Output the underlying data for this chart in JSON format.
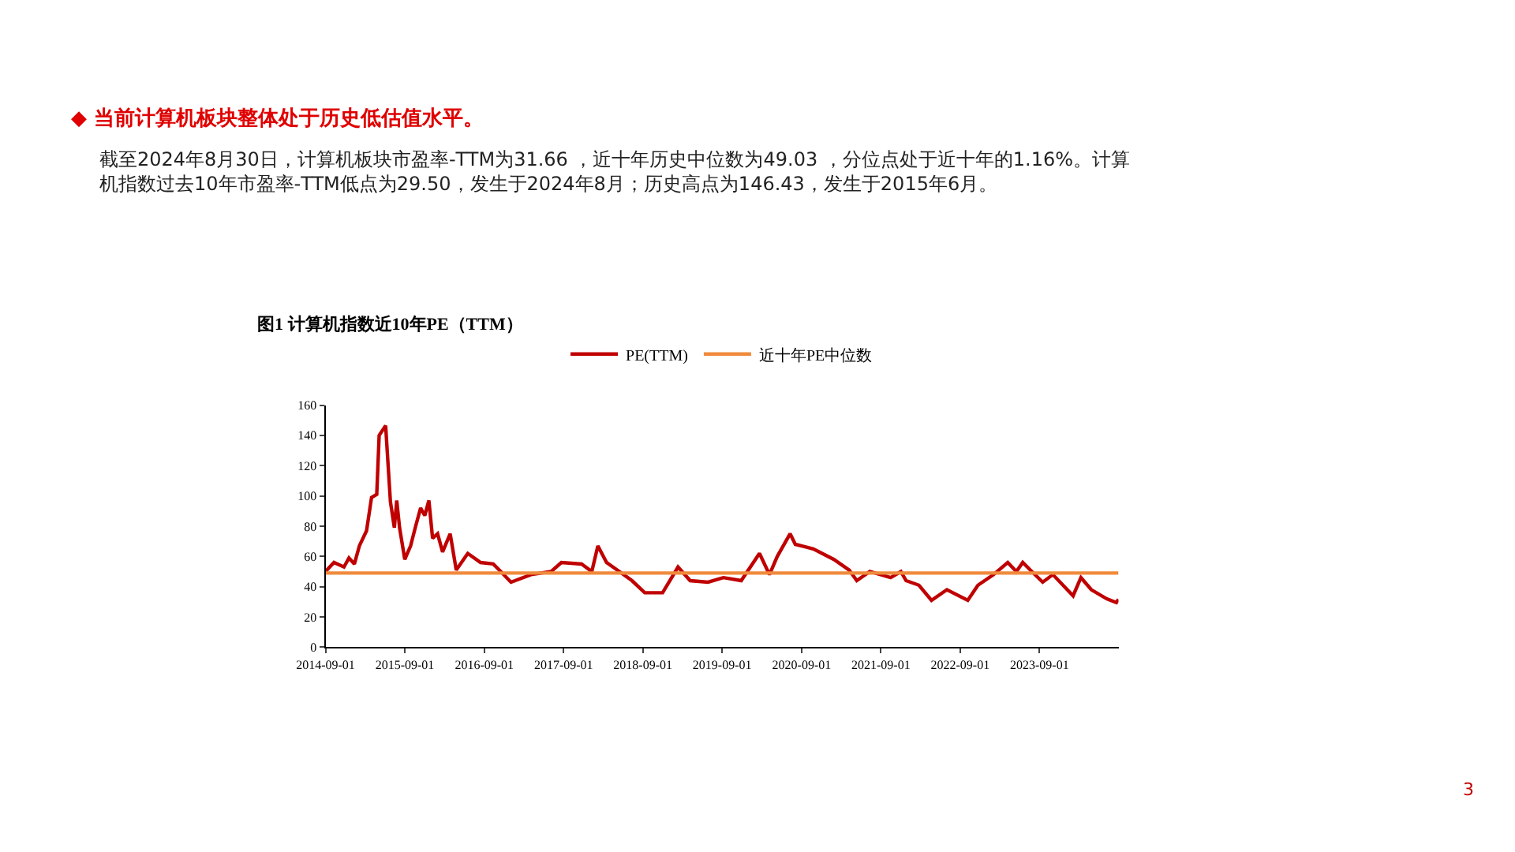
{
  "chart_data": {
    "type": "line",
    "title": "图1 计算机指数近10年PE（TTM）",
    "annotations": [
      "◆ 当前计算机板块整体处于历史低估值水平。",
      "截至2024年8月30日，计算机板块市盈率-TTM为31.66 ，近十年历史中位数为49.03 ，分位点处于近十年的1.16%。计算机指数过去10年市盈率-TTM低点为29.50，发生于2024年8月；历史高点为146.43，发生于2015年6月。",
      "3"
    ],
    "series": [
      {
        "name": "PE(TTM)",
        "color": "#c00000",
        "x": [
          "2014-09-01",
          "2014-10-10",
          "2014-11-25",
          "2014-12-18",
          "2015-01-12",
          "2015-02-04",
          "2015-03-09",
          "2015-04-01",
          "2015-04-25",
          "2015-05-06",
          "2015-06-05",
          "2015-06-12",
          "2015-06-27",
          "2015-07-15",
          "2015-07-26",
          "2015-08-08",
          "2015-09-01",
          "2015-09-28",
          "2015-10-21",
          "2015-11-13",
          "2015-12-02",
          "2015-12-21",
          "2016-01-07",
          "2016-01-30",
          "2016-02-22",
          "2016-03-28",
          "2016-04-25",
          "2016-06-17",
          "2016-08-15",
          "2016-10-12",
          "2016-11-16",
          "2017-01-02",
          "2017-04-04",
          "2017-07-06",
          "2017-08-22",
          "2017-11-23",
          "2018-01-09",
          "2018-02-06",
          "2018-03-18",
          "2018-05-16",
          "2018-07-13",
          "2018-09-10",
          "2018-12-01",
          "2019-02-10",
          "2019-04-07",
          "2019-06-28",
          "2019-09-07",
          "2019-11-28",
          "2020-02-20",
          "2020-04-06",
          "2020-05-12",
          "2020-07-10",
          "2020-08-03",
          "2020-10-25",
          "2021-01-28",
          "2021-04-08",
          "2021-05-13",
          "2021-07-12",
          "2021-10-16",
          "2021-12-02",
          "2021-12-26",
          "2022-02-23",
          "2022-04-22",
          "2022-07-02",
          "2022-10-06",
          "2022-11-22",
          "2023-02-02",
          "2023-04-08",
          "2023-05-18",
          "2023-06-16",
          "2023-07-28",
          "2023-09-16",
          "2023-11-02",
          "2024-02-03",
          "2024-03-10",
          "2024-04-27",
          "2024-07-07",
          "2024-08-20",
          "2024-08-30"
        ],
        "values": [
          50,
          56,
          53,
          59,
          55,
          67,
          77,
          99,
          101,
          140,
          146.43,
          130,
          96,
          79,
          97,
          79,
          58,
          67,
          80,
          92,
          87,
          97,
          72,
          75,
          63,
          75,
          51,
          62,
          56,
          55,
          50,
          43,
          48,
          50,
          56,
          55,
          50,
          67,
          56,
          50,
          44,
          36,
          36,
          53,
          44,
          43,
          46,
          44,
          62,
          48,
          60,
          75,
          68,
          65,
          58,
          51,
          44,
          50,
          46,
          50,
          44,
          41,
          31,
          38,
          31,
          41,
          48,
          56,
          50,
          56,
          50,
          43,
          48,
          34,
          46,
          38,
          32,
          29.5,
          31.66
        ]
      },
      {
        "name": "近十年PE中位数",
        "color": "#f08a3c",
        "x": [
          "2014-09-01",
          "2024-08-30"
        ],
        "values": [
          49.03,
          49.03
        ]
      }
    ],
    "xlim": [
      "2014-09-01",
      "2024-08-30"
    ],
    "xticks": [
      "2014-09-01",
      "2015-09-01",
      "2016-09-01",
      "2017-09-01",
      "2018-09-01",
      "2019-09-01",
      "2020-09-01",
      "2021-09-01",
      "2022-09-01",
      "2023-09-01"
    ],
    "ylim": [
      0,
      160
    ],
    "yticks": [
      0,
      20,
      40,
      60,
      80,
      100,
      120,
      140,
      160
    ],
    "legend": "top",
    "marker": "none",
    "line_style": "solid"
  }
}
